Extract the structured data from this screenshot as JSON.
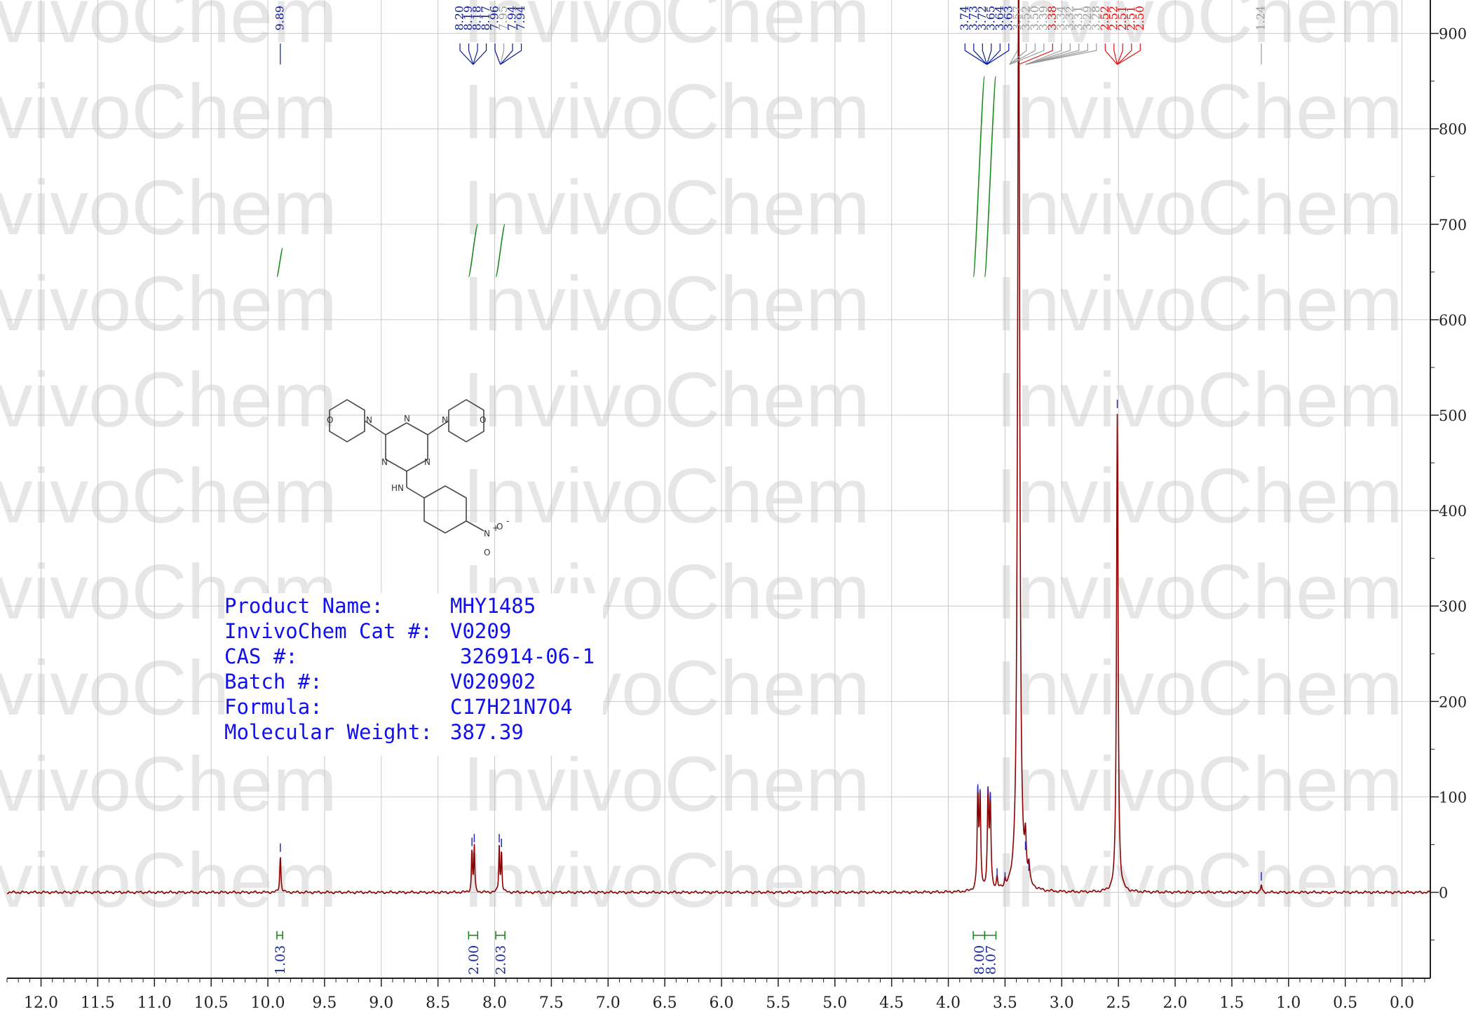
{
  "chart_data": {
    "type": "line",
    "xlabel": "",
    "ylabel": "",
    "xlim": [
      12.3,
      -0.25
    ],
    "ylim": [
      -90,
      935
    ],
    "x_ticks": [
      12.0,
      11.5,
      11.0,
      10.5,
      10.0,
      9.5,
      9.0,
      8.5,
      8.0,
      7.5,
      7.0,
      6.5,
      6.0,
      5.5,
      5.0,
      4.5,
      4.0,
      3.5,
      3.0,
      2.5,
      2.0,
      1.5,
      1.0,
      0.5,
      0.0
    ],
    "x_tick_labels": [
      "12.0",
      "11.5",
      "11.0",
      "10.5",
      "10.0",
      "9.5",
      "9.0",
      "8.5",
      "8.0",
      "7.5",
      "7.0",
      "6.5",
      "6.0",
      "5.5",
      "5.0",
      "4.5",
      "4.0",
      "3.5",
      "3.0",
      "2.5",
      "2.0",
      "1.5",
      "1.0",
      "0.5",
      "0.0"
    ],
    "y_ticks": [
      0,
      100,
      200,
      300,
      400,
      500,
      600,
      700,
      800,
      900
    ],
    "y_tick_labels": [
      "0",
      "100",
      "200",
      "300",
      "400",
      "500",
      "600",
      "700",
      "800",
      "900"
    ],
    "grid": true,
    "watermark": "InvivoChem",
    "spectrum_color": "#8b0000",
    "peaks": [
      {
        "ppm": 9.89,
        "height": 38,
        "width": 0.006
      },
      {
        "ppm": 8.2,
        "height": 44,
        "width": 0.005
      },
      {
        "ppm": 8.18,
        "height": 48,
        "width": 0.005
      },
      {
        "ppm": 7.96,
        "height": 48,
        "width": 0.005
      },
      {
        "ppm": 7.94,
        "height": 43,
        "width": 0.005
      },
      {
        "ppm": 3.74,
        "height": 100,
        "width": 0.007
      },
      {
        "ppm": 3.72,
        "height": 95,
        "width": 0.007
      },
      {
        "ppm": 3.65,
        "height": 98,
        "width": 0.007
      },
      {
        "ppm": 3.63,
        "height": 92,
        "width": 0.007
      },
      {
        "ppm": 3.57,
        "height": 12,
        "width": 0.006
      },
      {
        "ppm": 3.5,
        "height": 8,
        "width": 0.006
      },
      {
        "ppm": 3.38,
        "height": 980,
        "width": 0.011
      },
      {
        "ppm": 3.32,
        "height": 40,
        "width": 0.008
      },
      {
        "ppm": 3.29,
        "height": 18,
        "width": 0.008
      },
      {
        "ppm": 2.51,
        "height": 503,
        "width": 0.008
      },
      {
        "ppm": 1.24,
        "height": 8,
        "width": 0.006
      }
    ],
    "peak_label_groups": [
      {
        "color": "#0a1a9a",
        "anchor_ppm": 9.89,
        "labels": [
          {
            "text": "9.89",
            "ppm": 9.89
          }
        ]
      },
      {
        "color": "#0a1a9a",
        "anchor_ppm": 8.19,
        "labels": [
          {
            "text": "8.20",
            "ppm": 8.2
          },
          {
            "text": "8.19",
            "ppm": 8.19
          },
          {
            "text": "8.18",
            "ppm": 8.18
          },
          {
            "text": "8.17",
            "ppm": 8.17
          }
        ]
      },
      {
        "color": "#0a1a9a",
        "anchor_ppm": 7.95,
        "labels": [
          {
            "text": "7.96",
            "ppm": 7.96
          },
          {
            "text": "7.95",
            "ppm": 7.95,
            "color": "#9a9a9a"
          },
          {
            "text": "7.94",
            "ppm": 7.94
          },
          {
            "text": "7.94",
            "ppm": 7.94
          }
        ]
      },
      {
        "color": "#0a1a9a",
        "anchor_ppm": 3.66,
        "labels": [
          {
            "text": "3.74",
            "ppm": 3.74
          },
          {
            "text": "3.73",
            "ppm": 3.73
          },
          {
            "text": "3.72",
            "ppm": 3.72
          },
          {
            "text": "3.65",
            "ppm": 3.65
          },
          {
            "text": "3.64",
            "ppm": 3.64
          },
          {
            "text": "3.63",
            "ppm": 3.63
          }
        ]
      },
      {
        "color": "#9a9a9a",
        "anchor_ppm": 3.46,
        "labels": [
          {
            "text": "3.57",
            "ppm": 3.57
          },
          {
            "text": "3.52",
            "ppm": 3.52
          },
          {
            "text": "3.50",
            "ppm": 3.5
          },
          {
            "text": "3.39",
            "ppm": 3.39
          }
        ]
      },
      {
        "color": "#e01010",
        "anchor_ppm": 3.38,
        "labels": [
          {
            "text": "3.38",
            "ppm": 3.38
          }
        ]
      },
      {
        "color": "#9a9a9a",
        "anchor_ppm": 3.32,
        "labels": [
          {
            "text": "3.34",
            "ppm": 3.34
          },
          {
            "text": "3.32",
            "ppm": 3.32
          },
          {
            "text": "3.31",
            "ppm": 3.31
          },
          {
            "text": "3.29",
            "ppm": 3.29
          },
          {
            "text": "3.28",
            "ppm": 3.28
          }
        ]
      },
      {
        "color": "#e01010",
        "anchor_ppm": 2.51,
        "labels": [
          {
            "text": "2.52",
            "ppm": 2.52
          },
          {
            "text": "2.52",
            "ppm": 2.52
          },
          {
            "text": "2.51",
            "ppm": 2.51
          },
          {
            "text": "2.51",
            "ppm": 2.51
          },
          {
            "text": "2.50",
            "ppm": 2.5
          }
        ]
      },
      {
        "color": "#9a9a9a",
        "anchor_ppm": 1.24,
        "labels": [
          {
            "text": "1.24",
            "ppm": 1.24
          }
        ]
      }
    ],
    "integrals": [
      {
        "from": 9.92,
        "to": 9.87,
        "value": "1.03",
        "curve_low": 645,
        "curve_high": 675
      },
      {
        "from": 8.23,
        "to": 8.15,
        "value": "2.00",
        "curve_low": 645,
        "curve_high": 700
      },
      {
        "from": 7.99,
        "to": 7.91,
        "value": "2.03",
        "curve_low": 645,
        "curve_high": 700
      },
      {
        "from": 3.78,
        "to": 3.68,
        "value": "8.00",
        "curve_low": 645,
        "curve_high": 855
      },
      {
        "from": 3.68,
        "to": 3.58,
        "value": "8.07",
        "curve_low": 645,
        "curve_high": 855
      }
    ]
  },
  "info": {
    "product_name_label": "Product Name:",
    "product_name": "MHY1485",
    "cat_label": "InvivoChem Cat #:",
    "cat": "V0209",
    "cas_label": "CAS #:",
    "cas": "326914-06-1",
    "batch_label": "Batch #:",
    "batch": "V020902",
    "formula_label": "Formula:",
    "formula": "C17H21N7O4",
    "mw_label": "Molecular Weight:",
    "mw": "387.39"
  },
  "structure": {
    "atoms": [
      "O",
      "N",
      "N",
      "N",
      "N",
      "N",
      "O",
      "HN",
      "N",
      "O",
      "O",
      "-",
      "+"
    ]
  }
}
